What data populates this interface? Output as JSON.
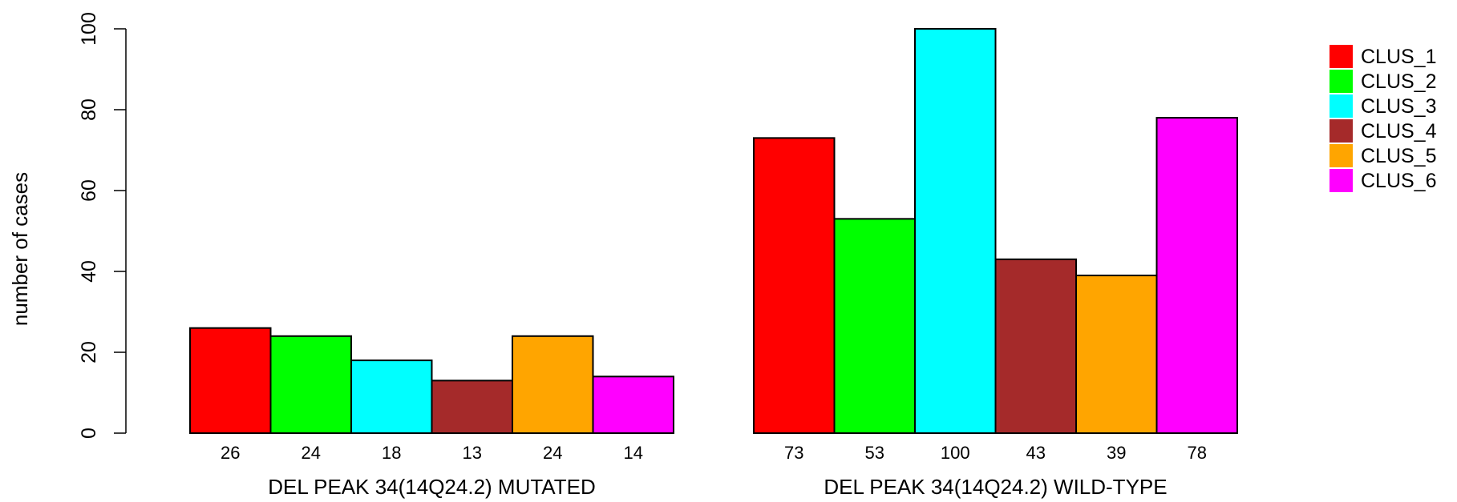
{
  "chart_data": {
    "type": "bar",
    "title": "",
    "ylabel": "number of cases",
    "ylim": [
      0,
      100
    ],
    "yticks": [
      0,
      20,
      40,
      60,
      80,
      100
    ],
    "grid": false,
    "legend_position": "top-right",
    "groups": [
      {
        "label": "DEL PEAK 34(14Q24.2) MUTATED",
        "values": [
          26,
          24,
          18,
          13,
          24,
          14
        ]
      },
      {
        "label": "DEL PEAK 34(14Q24.2) WILD-TYPE",
        "values": [
          73,
          53,
          100,
          43,
          39,
          78
        ]
      }
    ],
    "series": [
      {
        "name": "CLUS_1",
        "color": "#ff0000"
      },
      {
        "name": "CLUS_2",
        "color": "#00ff00"
      },
      {
        "name": "CLUS_3",
        "color": "#00ffff"
      },
      {
        "name": "CLUS_4",
        "color": "#a52a2a"
      },
      {
        "name": "CLUS_5",
        "color": "#ffa500"
      },
      {
        "name": "CLUS_6",
        "color": "#ff00ff"
      }
    ]
  }
}
